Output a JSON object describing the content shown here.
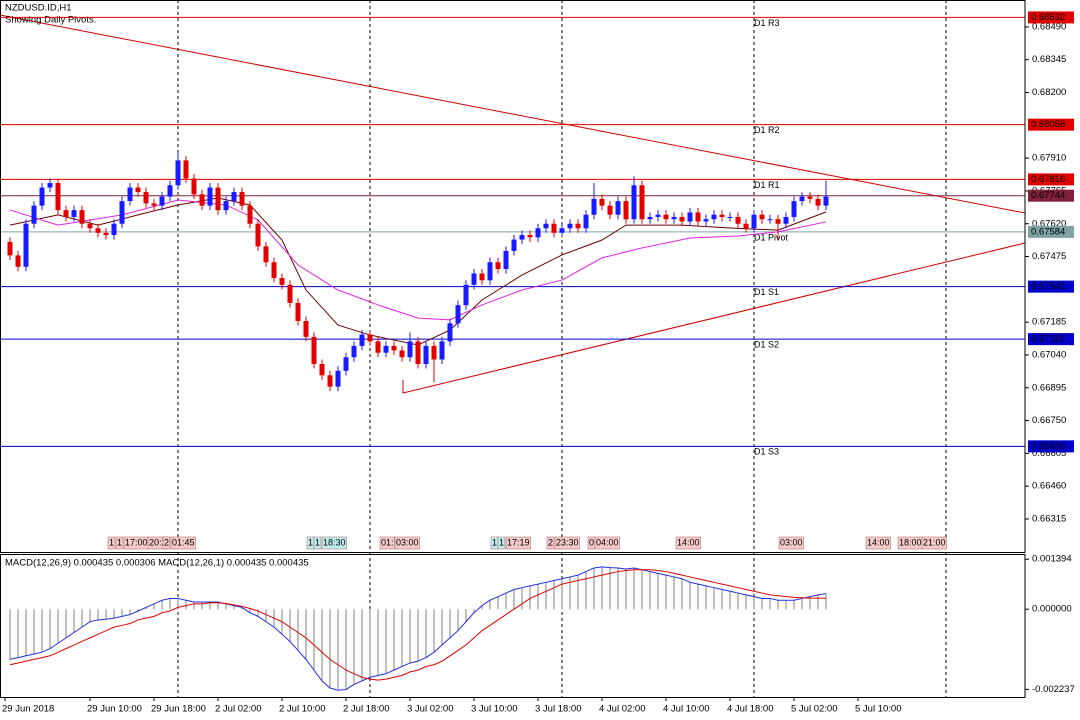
{
  "chart_data": {
    "type": "candlestick",
    "title": "NZDUSD.ID,H1",
    "subtitle": "Showing Daily Pivots.",
    "up_color": "#1a1aff",
    "down_color": "#e00000",
    "ylim": [
      0.66169,
      0.68609
    ],
    "yticks": [
      {
        "value": 0.6849,
        "label": "0.68490"
      },
      0.68345,
      {
        "value": 0.682,
        "label": "0.68200"
      },
      {
        "value": 0.6791,
        "label": "0.67910"
      },
      0.67765,
      {
        "value": 0.6762,
        "label": "0.67620"
      },
      0.67475,
      0.67185,
      {
        "value": 0.6704,
        "label": "0.67040"
      },
      0.66895,
      {
        "value": 0.6675,
        "label": "0.66750"
      },
      0.66605,
      {
        "value": 0.6646,
        "label": "0.66460"
      },
      0.66315
    ],
    "x_labels": [
      "29 Jun 2018",
      "29 Jun 10:00",
      "29 Jun 18:00",
      "2 Jul 02:00",
      "2 Jul 10:00",
      "2 Jul 18:00",
      "3 Jul 02:00",
      "3 Jul 10:00",
      "3 Jul 18:00",
      "4 Jul 02:00",
      "4 Jul 10:00",
      "4 Jul 18:00",
      "5 Jul 02:00",
      "5 Jul 10:00"
    ],
    "candles": [
      [
        0.6754,
        0.6756,
        0.6746,
        0.6748
      ],
      [
        0.6748,
        0.675,
        0.6741,
        0.6743
      ],
      [
        0.6743,
        0.6764,
        0.6741,
        0.6762
      ],
      [
        0.6762,
        0.6772,
        0.676,
        0.677
      ],
      [
        0.677,
        0.678,
        0.6768,
        0.6778
      ],
      [
        0.6778,
        0.6782,
        0.6776,
        0.678
      ],
      [
        0.678,
        0.6782,
        0.6766,
        0.6768
      ],
      [
        0.6768,
        0.677,
        0.6763,
        0.6765
      ],
      [
        0.6765,
        0.677,
        0.6763,
        0.6768
      ],
      [
        0.6768,
        0.677,
        0.676,
        0.6762
      ],
      [
        0.6762,
        0.6764,
        0.6758,
        0.676
      ],
      [
        0.676,
        0.6762,
        0.6756,
        0.6758
      ],
      [
        0.6758,
        0.676,
        0.6755,
        0.6757
      ],
      [
        0.6757,
        0.6764,
        0.6755,
        0.6762
      ],
      [
        0.6762,
        0.6774,
        0.676,
        0.6772
      ],
      [
        0.6772,
        0.678,
        0.677,
        0.6778
      ],
      [
        0.6778,
        0.678,
        0.6774,
        0.6776
      ],
      [
        0.6776,
        0.6778,
        0.6769,
        0.6771
      ],
      [
        0.6771,
        0.6773,
        0.6768,
        0.677
      ],
      [
        0.677,
        0.6776,
        0.6768,
        0.6774
      ],
      [
        0.6774,
        0.6781,
        0.6772,
        0.6779
      ],
      [
        0.6779,
        0.6794,
        0.6777,
        0.679
      ],
      [
        0.679,
        0.6792,
        0.678,
        0.6782
      ],
      [
        0.6782,
        0.6784,
        0.6773,
        0.6775
      ],
      [
        0.6775,
        0.6777,
        0.6768,
        0.677
      ],
      [
        0.677,
        0.678,
        0.6768,
        0.6778
      ],
      [
        0.6778,
        0.678,
        0.6766,
        0.6768
      ],
      [
        0.6768,
        0.6774,
        0.6766,
        0.6772
      ],
      [
        0.6772,
        0.6778,
        0.677,
        0.6776
      ],
      [
        0.6776,
        0.6778,
        0.6768,
        0.677
      ],
      [
        0.677,
        0.6772,
        0.676,
        0.6762
      ],
      [
        0.6762,
        0.6764,
        0.675,
        0.6752
      ],
      [
        0.6752,
        0.6754,
        0.6743,
        0.6745
      ],
      [
        0.6745,
        0.6747,
        0.6736,
        0.6738
      ],
      [
        0.6738,
        0.674,
        0.6733,
        0.6735
      ],
      [
        0.6735,
        0.6737,
        0.6725,
        0.6727
      ],
      [
        0.6727,
        0.6729,
        0.6717,
        0.6719
      ],
      [
        0.6719,
        0.6721,
        0.671,
        0.6712
      ],
      [
        0.6712,
        0.6714,
        0.6698,
        0.67
      ],
      [
        0.67,
        0.6702,
        0.6693,
        0.6695
      ],
      [
        0.6695,
        0.6697,
        0.6688,
        0.669
      ],
      [
        0.669,
        0.6699,
        0.6688,
        0.6697
      ],
      [
        0.6697,
        0.6705,
        0.6695,
        0.6703
      ],
      [
        0.6703,
        0.671,
        0.6701,
        0.6708
      ],
      [
        0.6708,
        0.6715,
        0.6706,
        0.6713
      ],
      [
        0.6713,
        0.6715,
        0.6708,
        0.671
      ],
      [
        0.671,
        0.6712,
        0.6703,
        0.6705
      ],
      [
        0.6705,
        0.671,
        0.6703,
        0.6708
      ],
      [
        0.6708,
        0.671,
        0.6704,
        0.6706
      ],
      [
        0.6706,
        0.6708,
        0.6701,
        0.6703
      ],
      [
        0.6703,
        0.6714,
        0.6701,
        0.671
      ],
      [
        0.671,
        0.6712,
        0.6698,
        0.67
      ],
      [
        0.67,
        0.671,
        0.6698,
        0.6708
      ],
      [
        0.6708,
        0.671,
        0.6692,
        0.6702
      ],
      [
        0.6702,
        0.6712,
        0.67,
        0.671
      ],
      [
        0.671,
        0.672,
        0.6708,
        0.6718
      ],
      [
        0.6718,
        0.6728,
        0.6716,
        0.6726
      ],
      [
        0.6726,
        0.6737,
        0.6724,
        0.6735
      ],
      [
        0.6735,
        0.6742,
        0.6733,
        0.674
      ],
      [
        0.674,
        0.6742,
        0.6735,
        0.6737
      ],
      [
        0.6737,
        0.6747,
        0.6735,
        0.6745
      ],
      [
        0.6745,
        0.6747,
        0.674,
        0.6742
      ],
      [
        0.6742,
        0.6752,
        0.674,
        0.675
      ],
      [
        0.675,
        0.6757,
        0.6748,
        0.6755
      ],
      [
        0.6755,
        0.6759,
        0.6753,
        0.6757
      ],
      [
        0.6757,
        0.6759,
        0.6754,
        0.6756
      ],
      [
        0.6756,
        0.6762,
        0.6754,
        0.676
      ],
      [
        0.676,
        0.6764,
        0.6758,
        0.6762
      ],
      [
        0.6762,
        0.6764,
        0.6756,
        0.6758
      ],
      [
        0.6758,
        0.6762,
        0.6756,
        0.676
      ],
      [
        0.676,
        0.6764,
        0.6758,
        0.6762
      ],
      [
        0.6762,
        0.6764,
        0.6758,
        0.676
      ],
      [
        0.676,
        0.6768,
        0.6758,
        0.6766
      ],
      [
        0.6766,
        0.678,
        0.6764,
        0.6773
      ],
      [
        0.6773,
        0.6775,
        0.6768,
        0.677
      ],
      [
        0.677,
        0.6772,
        0.6764,
        0.6766
      ],
      [
        0.6766,
        0.6774,
        0.6764,
        0.6772
      ],
      [
        0.6772,
        0.6774,
        0.6762,
        0.6764
      ],
      [
        0.6764,
        0.6783,
        0.6762,
        0.6779
      ],
      [
        0.6779,
        0.6781,
        0.6762,
        0.6764
      ],
      [
        0.6764,
        0.6767,
        0.6762,
        0.6765
      ],
      [
        0.6765,
        0.6768,
        0.6763,
        0.6766
      ],
      [
        0.6766,
        0.6768,
        0.6762,
        0.6764
      ],
      [
        0.6764,
        0.6767,
        0.6762,
        0.6765
      ],
      [
        0.6765,
        0.6767,
        0.6761,
        0.6763
      ],
      [
        0.6763,
        0.6769,
        0.6761,
        0.6767
      ],
      [
        0.6767,
        0.6769,
        0.6761,
        0.6763
      ],
      [
        0.6763,
        0.6766,
        0.6761,
        0.6764
      ],
      [
        0.6764,
        0.6768,
        0.6762,
        0.6766
      ],
      [
        0.6766,
        0.6768,
        0.6763,
        0.6765
      ],
      [
        0.6765,
        0.6767,
        0.6763,
        0.6765
      ],
      [
        0.6765,
        0.6767,
        0.676,
        0.6762
      ],
      [
        0.6762,
        0.6764,
        0.6758,
        0.676
      ],
      [
        0.676,
        0.6768,
        0.6758,
        0.6766
      ],
      [
        0.6766,
        0.6768,
        0.6762,
        0.6764
      ],
      [
        0.6764,
        0.6766,
        0.6762,
        0.6764
      ],
      [
        0.6764,
        0.6766,
        0.6755,
        0.6762
      ],
      [
        0.6762,
        0.6767,
        0.676,
        0.6765
      ],
      [
        0.6765,
        0.6774,
        0.6763,
        0.6772
      ],
      [
        0.6772,
        0.6776,
        0.677,
        0.6774
      ],
      [
        0.6774,
        0.6776,
        0.6771,
        0.6773
      ],
      [
        0.6773,
        0.6775,
        0.6768,
        0.677
      ],
      [
        0.677,
        0.6781,
        0.6768,
        0.6774
      ]
    ],
    "lines": [
      {
        "color": "#6b0000",
        "x": [
          0,
          6,
          11,
          16,
          21,
          26,
          30,
          34,
          37,
          41,
          45,
          51,
          55,
          59,
          64,
          69,
          74,
          77,
          84,
          90,
          96,
          102
        ],
        "values": [
          0.67614,
          0.67659,
          0.67614,
          0.67659,
          0.67703,
          0.67734,
          0.67703,
          0.67548,
          0.67327,
          0.67172,
          0.67128,
          0.67084,
          0.6715,
          0.67283,
          0.67393,
          0.67482,
          0.67548,
          0.67614,
          0.67614,
          0.67601,
          0.67592,
          0.67672
        ]
      },
      {
        "color": "#e020e0",
        "x": [
          0,
          6,
          14,
          21,
          27,
          31,
          36,
          41,
          46,
          51,
          55,
          59,
          64,
          69,
          74,
          79,
          85,
          91,
          96,
          102
        ],
        "values": [
          0.67681,
          0.67614,
          0.67659,
          0.67725,
          0.67703,
          0.67637,
          0.67438,
          0.67327,
          0.67261,
          0.67203,
          0.67195,
          0.67261,
          0.67327,
          0.67371,
          0.67469,
          0.67513,
          0.67557,
          0.67566,
          0.67584,
          0.67628
        ]
      }
    ],
    "pivots": [
      {
        "name": "D1 R3",
        "value": 0.68532,
        "color": "#e00000"
      },
      {
        "name": "D1 R2",
        "value": 0.68058,
        "color": "#e00000"
      },
      {
        "name": "D1 R1",
        "value": 0.67816,
        "color": "#e00000"
      },
      {
        "name": "D1 Pivot",
        "value": 0.67584,
        "color": "#7fa3a3"
      },
      {
        "name": "D1 S1",
        "value": 0.67342,
        "color": "#0000c8"
      },
      {
        "name": "D1 S2",
        "value": 0.6711,
        "label": "0.67110",
        "color": "#0000c8"
      },
      {
        "name": "D1 S3",
        "value": 0.66636,
        "color": "#0000c8"
      }
    ],
    "last_price": {
      "value": 0.67744,
      "color": "#80203a"
    },
    "markers": [
      "1",
      "1",
      "17:00",
      "20:2",
      "2",
      "01:45",
      "1",
      "1",
      "18:30",
      "01:",
      "03:00",
      "1",
      "1",
      "17:19",
      "2",
      "23:30",
      "0",
      "04:00",
      "14:00",
      "03:00",
      "14:00",
      "18:00",
      "21:00"
    ],
    "macd": {
      "label": "MACD(12,26,9) 0.000435 0.000306 MACD(12,26,1) 0.000435 0.000435",
      "ylim": [
        -0.00245,
        0.00154
      ],
      "yticks": [
        0.001394,
        {
          "value": 0,
          "label": "0.000000"
        },
        -0.002237
      ],
      "hist_color": "#808080",
      "line_color": "#2030e0",
      "signal_color": "#e00000",
      "values": [
        -0.0014,
        -0.00135,
        -0.0013,
        -0.00125,
        -0.0012,
        -0.0011,
        -0.00095,
        -0.0008,
        -0.00065,
        -0.0005,
        -0.00035,
        -0.0003,
        -0.00028,
        -0.00025,
        -0.0002,
        -0.00015,
        -5e-05,
        5e-05,
        0.00015,
        0.00025,
        0.0003,
        0.0003,
        0.00025,
        0.0002,
        0.0002,
        0.0002,
        0.0002,
        0.00015,
        0.0001,
        5e-05,
        -0.0001,
        -0.0002,
        -0.00035,
        -0.0005,
        -0.0007,
        -0.0009,
        -0.00115,
        -0.0014,
        -0.0017,
        -0.002,
        -0.0022,
        -0.00226,
        -0.00224,
        -0.0021,
        -0.002,
        -0.0019,
        -0.00185,
        -0.0018,
        -0.0017,
        -0.0016,
        -0.0015,
        -0.00145,
        -0.00135,
        -0.0012,
        -0.001,
        -0.0008,
        -0.0006,
        -0.00035,
        -0.0001,
        0.0001,
        0.00025,
        0.00035,
        0.00045,
        0.00055,
        0.0006,
        0.00065,
        0.0007,
        0.00075,
        0.0008,
        0.00085,
        0.0009,
        0.00095,
        0.00105,
        0.00115,
        0.00118,
        0.00116,
        0.00115,
        0.00112,
        0.00115,
        0.0011,
        0.00105,
        0.001,
        0.00095,
        0.0009,
        0.00085,
        0.00075,
        0.0007,
        0.00065,
        0.0006,
        0.00055,
        0.0005,
        0.00045,
        0.0004,
        0.00035,
        0.0003,
        0.0003,
        0.00025,
        0.00025,
        0.00025,
        0.0003,
        0.00035,
        0.0004,
        0.000435
      ],
      "signal": [
        -0.00155,
        -0.0015,
        -0.00145,
        -0.0014,
        -0.00135,
        -0.0013,
        -0.0012,
        -0.0011,
        -0.001,
        -0.0009,
        -0.0008,
        -0.0007,
        -0.0006,
        -0.0005,
        -0.00045,
        -0.0004,
        -0.0003,
        -0.00025,
        -0.0002,
        -0.0001,
        -5e-05,
        5e-05,
        0.0001,
        0.00015,
        0.00015,
        0.00018,
        0.00018,
        0.00016,
        0.00012,
        8e-05,
        2e-05,
        -5e-05,
        -0.00015,
        -0.00025,
        -0.00035,
        -0.0005,
        -0.00065,
        -0.0008,
        -0.001,
        -0.0012,
        -0.0014,
        -0.00155,
        -0.0017,
        -0.0018,
        -0.0019,
        -0.00195,
        -0.00198,
        -0.00195,
        -0.0019,
        -0.00185,
        -0.00175,
        -0.0017,
        -0.0016,
        -0.00155,
        -0.00145,
        -0.0013,
        -0.00115,
        -0.001,
        -0.0008,
        -0.0006,
        -0.00045,
        -0.0003,
        -0.00015,
        0,
        0.00015,
        0.0003,
        0.0004,
        0.0005,
        0.0006,
        0.0007,
        0.00075,
        0.0008,
        0.00085,
        0.0009,
        0.00095,
        0.001,
        0.00105,
        0.00108,
        0.0011,
        0.0011,
        0.0011,
        0.00108,
        0.00105,
        0.001,
        0.00095,
        0.0009,
        0.00085,
        0.0008,
        0.00075,
        0.0007,
        0.00065,
        0.0006,
        0.00055,
        0.0005,
        0.00045,
        0.0004,
        0.00038,
        0.00035,
        0.00033,
        0.00032,
        0.00031,
        0.00031,
        0.000306
      ]
    }
  }
}
